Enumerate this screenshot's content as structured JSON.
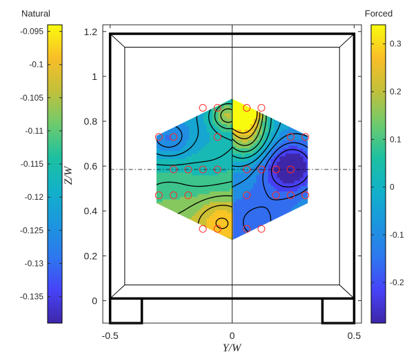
{
  "chart_data": {
    "type": "heatmap",
    "xlabel": "Y/W",
    "ylabel": "Z/W",
    "xlim": [
      -0.53,
      0.53
    ],
    "ylim": [
      -0.1,
      1.23
    ],
    "x_ticks": [
      "-0.5",
      "0",
      "0.5"
    ],
    "x_tick_values": [
      -0.5,
      0,
      0.5
    ],
    "y_ticks": [
      "0",
      "0.2",
      "0.4",
      "0.6",
      "0.8",
      "1",
      "1.2"
    ],
    "y_tick_values": [
      0,
      0.2,
      0.4,
      0.6,
      0.8,
      1.0,
      1.2
    ],
    "colorbars": [
      {
        "side": "left",
        "label": "Natural",
        "colormap": "parula",
        "range": [
          -0.139,
          -0.094
        ],
        "ticks": [
          "-0.095",
          "-0.1",
          "-0.105",
          "-0.11",
          "-0.115",
          "-0.12",
          "-0.125",
          "-0.13",
          "-0.135"
        ],
        "tick_values": [
          -0.095,
          -0.1,
          -0.105,
          -0.11,
          -0.115,
          -0.12,
          -0.125,
          -0.13,
          -0.135
        ]
      },
      {
        "side": "right",
        "label": "Forced",
        "colormap": "parula",
        "range": [
          -0.285,
          0.34
        ],
        "ticks": [
          "0.3",
          "0.2",
          "0.1",
          "0",
          "-0.1",
          "-0.2"
        ],
        "tick_values": [
          0.3,
          0.2,
          0.1,
          0,
          -0.1,
          -0.2
        ]
      }
    ],
    "reference_lines": {
      "vertical_y_over_w": 0,
      "horizontal_z_over_w": 0.585
    },
    "measurement_points": [
      [
        -0.12,
        0.86
      ],
      [
        -0.06,
        0.86
      ],
      [
        0.06,
        0.86
      ],
      [
        0.12,
        0.86
      ],
      [
        -0.3,
        0.73
      ],
      [
        -0.24,
        0.73
      ],
      [
        -0.06,
        0.73
      ],
      [
        0.24,
        0.73
      ],
      [
        0.3,
        0.73
      ],
      [
        -0.24,
        0.585
      ],
      [
        -0.18,
        0.585
      ],
      [
        -0.12,
        0.585
      ],
      [
        -0.06,
        0.585
      ],
      [
        0.06,
        0.585
      ],
      [
        0.12,
        0.585
      ],
      [
        0.18,
        0.585
      ],
      [
        0.24,
        0.585
      ],
      [
        -0.3,
        0.47
      ],
      [
        -0.24,
        0.47
      ],
      [
        -0.18,
        0.47
      ],
      [
        0.06,
        0.47
      ],
      [
        0.18,
        0.47
      ],
      [
        0.24,
        0.47
      ],
      [
        0.3,
        0.47
      ],
      [
        -0.06,
        0.32
      ],
      [
        -0.12,
        0.32
      ],
      [
        0.06,
        0.32
      ],
      [
        0.12,
        0.32
      ]
    ],
    "colors": {
      "parula": [
        "#3e26a8",
        "#4743f8",
        "#2d78ee",
        "#1c96de",
        "#12b1c9",
        "#1dc0a0",
        "#6ecb6e",
        "#c1c03a",
        "#f9be28",
        "#f9fb0e"
      ],
      "marker": "#ff2a2a",
      "frame": "#000000"
    }
  }
}
